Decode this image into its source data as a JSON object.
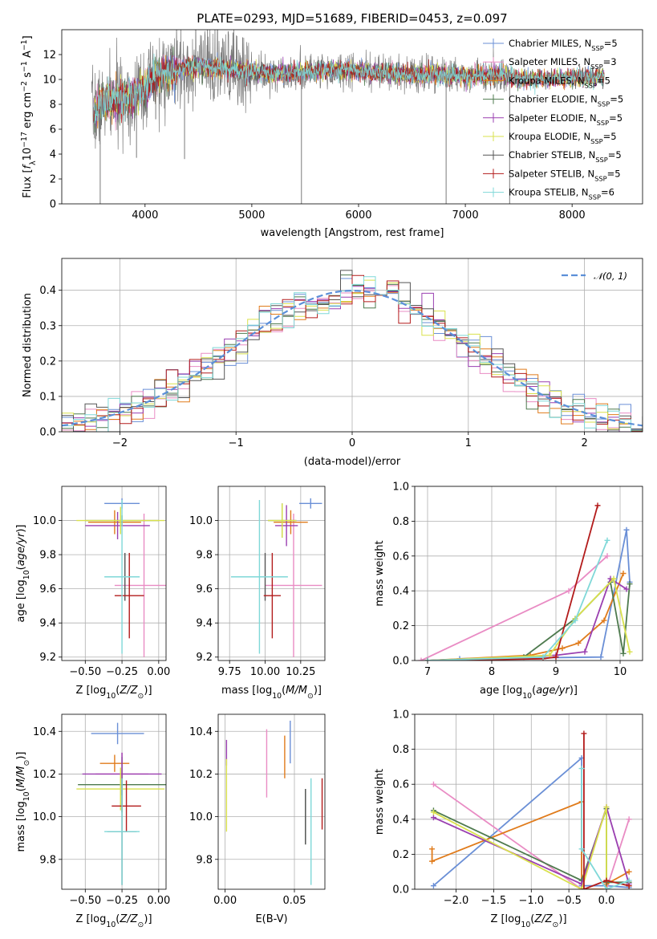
{
  "chart_data": [
    {
      "id": "spectrum",
      "type": "line",
      "title": "PLATE=0293, MJD=51689, FIBERID=0453, z=0.097",
      "xlabel": "wavelength [Angstrom, rest frame]",
      "ylabel": "Flux [f_λ 10^-17 erg cm^-2 s^-1 A^-1]",
      "xlim": [
        3220,
        8660
      ],
      "ylim": [
        0,
        14
      ],
      "xticks": [
        "4000",
        "5000",
        "6000",
        "7000",
        "8000"
      ],
      "yticks": [
        "0",
        "2",
        "4",
        "6",
        "8",
        "10",
        "12"
      ],
      "grid": false,
      "legend_position": "right",
      "x_range_data": [
        3520,
        8300
      ],
      "series": [
        {
          "name": "Chabrier MILES, N_SSP=5",
          "color": "#6a8fd6"
        },
        {
          "name": "Salpeter MILES, N_SSP=3",
          "color": "#e98cc4"
        },
        {
          "name": "Kroupa MILES, N_SSP=5",
          "color": "#e07b1b"
        },
        {
          "name": "Chabrier ELODIE, N_SSP=5",
          "color": "#4e7a4e"
        },
        {
          "name": "Salpeter ELODIE, N_SSP=5",
          "color": "#9a3fb0"
        },
        {
          "name": "Kroupa ELODIE, N_SSP=5",
          "color": "#d9e14c"
        },
        {
          "name": "Chabrier STELIB, N_SSP=5",
          "color": "#555555"
        },
        {
          "name": "Salpeter STELIB, N_SSP=5",
          "color": "#b31b1b"
        },
        {
          "name": "Kroupa STELIB, N_SSP=6",
          "color": "#7fd8d8"
        }
      ],
      "continuum_points": [
        [
          3520,
          7.5
        ],
        [
          3650,
          8.2
        ],
        [
          3800,
          8.5
        ],
        [
          3950,
          9.0
        ],
        [
          4100,
          10.2
        ],
        [
          4300,
          10.8
        ],
        [
          4500,
          11.0
        ],
        [
          4800,
          10.8
        ],
        [
          5000,
          10.6
        ],
        [
          5200,
          10.5
        ],
        [
          5500,
          10.6
        ],
        [
          5800,
          10.8
        ],
        [
          6100,
          10.6
        ],
        [
          6400,
          10.4
        ],
        [
          6700,
          10.4
        ],
        [
          7000,
          10.3
        ],
        [
          7300,
          10.4
        ],
        [
          7600,
          10.0
        ],
        [
          7900,
          10.1
        ],
        [
          8300,
          10.2
        ]
      ],
      "data_noise_range": [
        3500,
        7400
      ],
      "spikes": [
        [
          3580,
          0.0
        ],
        [
          3920,
          3.7
        ],
        [
          4100,
          6.8
        ],
        [
          4370,
          3.6
        ],
        [
          5465,
          0.0
        ],
        [
          6820,
          0.0
        ],
        [
          7415,
          0.0
        ]
      ]
    },
    {
      "id": "residuals",
      "type": "step",
      "xlabel": "(data-model)/error",
      "ylabel": "Normed distribution",
      "xlim": [
        -2.5,
        2.5
      ],
      "ylim": [
        0,
        0.49
      ],
      "xticks": [
        "−2",
        "−1",
        "0",
        "1",
        "2"
      ],
      "yticks": [
        "0.0",
        "0.1",
        "0.2",
        "0.3",
        "0.4"
      ],
      "grid": true,
      "legend": "𝒩(0, 1)",
      "legend_position": "top-right",
      "gaussian": {
        "mean": 0,
        "sigma": 1,
        "color": "#5b8fd8"
      },
      "bin_width": 0.1
    },
    {
      "id": "age-vs-Z",
      "type": "errorbar",
      "xlabel": "Z [log10(Z/Z_sun)]",
      "ylabel": "age [log10(age/yr)]",
      "xlim": [
        -0.66,
        0.05
      ],
      "ylim": [
        9.18,
        10.2
      ],
      "xticks": [
        "−0.50",
        "−0.25",
        "0.00"
      ],
      "yticks": [
        "9.2",
        "9.4",
        "9.6",
        "9.8",
        "10.0"
      ],
      "grid": true,
      "points": [
        {
          "color": "#6a8fd6",
          "x": -0.25,
          "xerr": 0.12,
          "y": 10.1,
          "yerr": 0.03
        },
        {
          "color": "#e98cc4",
          "x": -0.1,
          "xerr": 0.2,
          "y": 9.62,
          "yerr": 0.42
        },
        {
          "color": "#e07b1b",
          "x": -0.3,
          "xerr": 0.18,
          "y": 9.99,
          "yerr": 0.07
        },
        {
          "color": "#4e7a4e",
          "x": -0.25,
          "xerr": 0.25,
          "y": 10.0,
          "yerr": 0.03
        },
        {
          "color": "#9a3fb0",
          "x": -0.28,
          "xerr": 0.22,
          "y": 9.97,
          "yerr": 0.08
        },
        {
          "color": "#d9e14c",
          "x": -0.26,
          "xerr": 0.3,
          "y": 10.0,
          "yerr": 0.08
        },
        {
          "color": "#555555",
          "x": -0.23,
          "xerr": 0.1,
          "y": 9.67,
          "yerr": 0.14
        },
        {
          "color": "#b31b1b",
          "x": -0.2,
          "xerr": 0.1,
          "y": 9.56,
          "yerr": 0.25
        },
        {
          "color": "#7fd8d8",
          "x": -0.25,
          "xerr": 0.12,
          "y": 9.67,
          "yerr": 0.45
        }
      ]
    },
    {
      "id": "age-vs-mass",
      "type": "errorbar",
      "xlabel": "mass [log10(M/M_sun)]",
      "ylabel": "",
      "xlim": [
        9.67,
        10.42
      ],
      "ylim": [
        9.18,
        10.2
      ],
      "xticks": [
        "9.75",
        "10.00",
        "10.25"
      ],
      "yticks": [
        "9.2",
        "9.4",
        "9.6",
        "9.8",
        "10.0"
      ],
      "grid": true,
      "points": [
        {
          "color": "#6a8fd6",
          "x": 10.32,
          "xerr": 0.08,
          "y": 10.1,
          "yerr": 0.03
        },
        {
          "color": "#e98cc4",
          "x": 10.2,
          "xerr": 0.2,
          "y": 9.62,
          "yerr": 0.42
        },
        {
          "color": "#e07b1b",
          "x": 10.18,
          "xerr": 0.12,
          "y": 9.99,
          "yerr": 0.07
        },
        {
          "color": "#4e7a4e",
          "x": 10.12,
          "xerr": 0.1,
          "y": 10.0,
          "yerr": 0.1
        },
        {
          "color": "#9a3fb0",
          "x": 10.15,
          "xerr": 0.08,
          "y": 9.97,
          "yerr": 0.12
        },
        {
          "color": "#d9e14c",
          "x": 10.12,
          "xerr": 0.1,
          "y": 10.0,
          "yerr": 0.1
        },
        {
          "color": "#555555",
          "x": 10.0,
          "xerr": 0.1,
          "y": 9.67,
          "yerr": 0.14
        },
        {
          "color": "#b31b1b",
          "x": 10.05,
          "xerr": 0.06,
          "y": 9.56,
          "yerr": 0.25
        },
        {
          "color": "#7fd8d8",
          "x": 9.96,
          "xerr": 0.2,
          "y": 9.67,
          "yerr": 0.45
        }
      ]
    },
    {
      "id": "mass-weight-vs-age",
      "type": "line",
      "xlabel": "age [log10(age/yr)]",
      "ylabel": "mass weight",
      "xlim": [
        6.8,
        10.35
      ],
      "ylim": [
        0,
        1
      ],
      "xticks": [
        "7",
        "8",
        "9",
        "10"
      ],
      "yticks": [
        "0.0",
        "0.2",
        "0.4",
        "0.6",
        "0.8",
        "1.0"
      ],
      "grid": true,
      "series": [
        {
          "color": "#6a8fd6",
          "x": [
            7.5,
            9.7,
            10.1,
            10.15
          ],
          "y": [
            0.01,
            0.02,
            0.75,
            0.45
          ]
        },
        {
          "color": "#e98cc4",
          "x": [
            6.9,
            9.2,
            9.8
          ],
          "y": [
            0.0,
            0.4,
            0.6
          ]
        },
        {
          "color": "#e07b1b",
          "x": [
            7.0,
            8.6,
            9.1,
            9.35,
            9.75,
            10.05
          ],
          "y": [
            0.0,
            0.03,
            0.07,
            0.1,
            0.23,
            0.5
          ]
        },
        {
          "color": "#4e7a4e",
          "x": [
            7.0,
            8.5,
            9.3,
            9.85,
            10.05,
            10.15
          ],
          "y": [
            0.0,
            0.02,
            0.24,
            0.45,
            0.04,
            0.44
          ]
        },
        {
          "color": "#9a3fb0",
          "x": [
            7.0,
            9.0,
            9.45,
            9.85,
            10.1
          ],
          "y": [
            0.0,
            0.03,
            0.05,
            0.47,
            0.41
          ]
        },
        {
          "color": "#d9e14c",
          "x": [
            7.0,
            8.9,
            9.3,
            9.9,
            10.15
          ],
          "y": [
            0.0,
            0.03,
            0.24,
            0.47,
            0.05
          ]
        },
        {
          "color": "#b31b1b",
          "x": [
            7.0,
            8.8,
            9.0,
            9.65
          ],
          "y": [
            0.0,
            0.01,
            0.02,
            0.89
          ]
        },
        {
          "color": "#7fd8d8",
          "x": [
            7.0,
            8.8,
            9.3,
            9.8
          ],
          "y": [
            0.0,
            0.02,
            0.23,
            0.69
          ]
        }
      ]
    },
    {
      "id": "mass-vs-Z",
      "type": "errorbar",
      "xlabel": "Z [log10(Z/Z_sun)]",
      "ylabel": "mass [log10(M/M_sun)]",
      "xlim": [
        -0.66,
        0.05
      ],
      "ylim": [
        9.66,
        10.48
      ],
      "xticks": [
        "−0.50",
        "−0.25",
        "0.00"
      ],
      "yticks": [
        "9.8",
        "10.0",
        "10.2",
        "10.4"
      ],
      "grid": true,
      "points": [
        {
          "color": "#6a8fd6",
          "x": -0.28,
          "xerr": 0.18,
          "y": 10.39,
          "yerr": 0.05
        },
        {
          "color": "#e98cc4",
          "x": -0.25,
          "xerr": 0.18,
          "y": 10.2,
          "yerr": 0.1
        },
        {
          "color": "#e07b1b",
          "x": -0.3,
          "xerr": 0.1,
          "y": 10.25,
          "yerr": 0.04
        },
        {
          "color": "#4e7a4e",
          "x": -0.25,
          "xerr": 0.3,
          "y": 10.15,
          "yerr": 0.13
        },
        {
          "color": "#9a3fb0",
          "x": -0.25,
          "xerr": 0.27,
          "y": 10.2,
          "yerr": 0.1
        },
        {
          "color": "#d9e14c",
          "x": -0.26,
          "xerr": 0.3,
          "y": 10.13,
          "yerr": 0.1
        },
        {
          "color": "#555555",
          "x": -0.25,
          "xerr": 0.1,
          "y": 9.93,
          "yerr": 0.25
        },
        {
          "color": "#b31b1b",
          "x": -0.22,
          "xerr": 0.1,
          "y": 10.05,
          "yerr": 0.12
        },
        {
          "color": "#7fd8d8",
          "x": -0.25,
          "xerr": 0.12,
          "y": 9.93,
          "yerr": 0.25
        }
      ]
    },
    {
      "id": "mass-vs-EBV",
      "type": "errorbar",
      "xlabel": "E(B-V)",
      "ylabel": "",
      "xlim": [
        -0.005,
        0.072
      ],
      "ylim": [
        9.66,
        10.48
      ],
      "xticks": [
        "0.00",
        "0.05"
      ],
      "yticks": [
        "9.8",
        "10.0",
        "10.2",
        "10.4"
      ],
      "grid": true,
      "points": [
        {
          "color": "#6a8fd6",
          "x": 0.047,
          "xerr": 0,
          "y": 10.35,
          "yerr": 0.1
        },
        {
          "color": "#e98cc4",
          "x": 0.03,
          "xerr": 0,
          "y": 10.25,
          "yerr": 0.16
        },
        {
          "color": "#e07b1b",
          "x": 0.043,
          "xerr": 0,
          "y": 10.28,
          "yerr": 0.1
        },
        {
          "color": "#4e7a4e",
          "x": 0.058,
          "xerr": 0,
          "y": 10.0,
          "yerr": 0.13
        },
        {
          "color": "#9a3fb0",
          "x": 0.001,
          "xerr": 0,
          "y": 10.3,
          "yerr": 0.06
        },
        {
          "color": "#d9e14c",
          "x": 0.001,
          "xerr": 0,
          "y": 10.1,
          "yerr": 0.17
        },
        {
          "color": "#555555",
          "x": 0.058,
          "xerr": 0,
          "y": 10.0,
          "yerr": 0.13
        },
        {
          "color": "#b31b1b",
          "x": 0.07,
          "xerr": 0,
          "y": 10.06,
          "yerr": 0.12
        },
        {
          "color": "#7fd8d8",
          "x": 0.062,
          "xerr": 0,
          "y": 9.93,
          "yerr": 0.25
        }
      ]
    },
    {
      "id": "mass-weight-vs-Z",
      "type": "line",
      "xlabel": "Z [log10(Z/Z_sun)]",
      "ylabel": "mass weight",
      "xlim": [
        -2.55,
        0.48
      ],
      "ylim": [
        0,
        1
      ],
      "xticks": [
        "−2.0",
        "−1.5",
        "−1.0",
        "−0.5",
        "0.0"
      ],
      "yticks": [
        "0.0",
        "0.2",
        "0.4",
        "0.6",
        "0.8",
        "1.0"
      ],
      "grid": true,
      "series": [
        {
          "color": "#6a8fd6",
          "x": [
            -2.3,
            -0.33,
            -0.33,
            0.0,
            0.3
          ],
          "y": [
            0.02,
            0.75,
            0.02,
            0.02,
            0.01
          ]
        },
        {
          "color": "#e98cc4",
          "x": [
            -2.3,
            -0.33,
            0.0,
            0.3
          ],
          "y": [
            0.6,
            0.0,
            0.0,
            0.4
          ]
        },
        {
          "color": "#e07b1b",
          "x": [
            -2.32,
            -2.32,
            -0.33,
            -0.33,
            0.0,
            0.0,
            0.3
          ],
          "y": [
            0.23,
            0.16,
            0.5,
            0.0,
            0.0,
            0.03,
            0.1
          ]
        },
        {
          "color": "#4e7a4e",
          "x": [
            -2.3,
            -0.33,
            0.0,
            0.0,
            0.3
          ],
          "y": [
            0.45,
            0.05,
            0.46,
            0.04,
            0.04
          ]
        },
        {
          "color": "#9a3fb0",
          "x": [
            -2.3,
            -0.33,
            0.0,
            0.3
          ],
          "y": [
            0.41,
            0.03,
            0.47,
            0.03
          ]
        },
        {
          "color": "#d9e14c",
          "x": [
            -2.3,
            -0.33,
            0.0,
            0.0,
            0.3
          ],
          "y": [
            0.44,
            0.0,
            0.47,
            0.05,
            0.02
          ]
        },
        {
          "color": "#b31b1b",
          "x": [
            -0.3,
            -0.3,
            0.0,
            0.3
          ],
          "y": [
            0.89,
            0.0,
            0.05,
            0.02
          ]
        },
        {
          "color": "#7fd8d8",
          "x": [
            -0.33,
            -0.33,
            0.0,
            0.3
          ],
          "y": [
            0.69,
            0.23,
            0.0,
            0.05
          ]
        }
      ]
    }
  ]
}
